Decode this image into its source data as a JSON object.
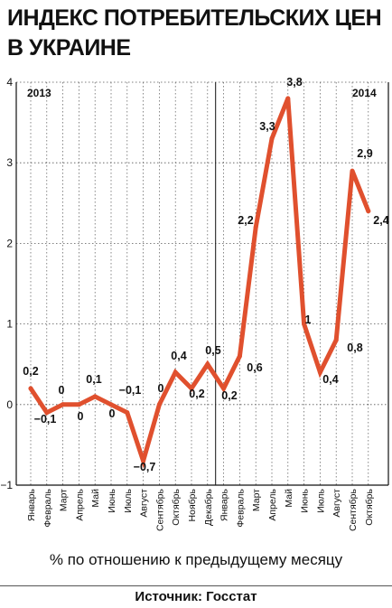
{
  "title_line1": "ИНДЕКС ПОТРЕБИТЕЛЬСКИХ ЦЕН",
  "title_line2": "В УКРАИНЕ",
  "caption": "% по отношению к предыдущему месяцу",
  "source": "Источник: Госстат",
  "chart_data": {
    "type": "line",
    "year_labels": [
      "2013",
      "2014"
    ],
    "categories": [
      "Январь",
      "Февраль",
      "Март",
      "Апрель",
      "Май",
      "Июнь",
      "Июль",
      "Август",
      "Сентябрь",
      "Октябрь",
      "Ноябрь",
      "Декабрь",
      "Январь",
      "Февраль",
      "Март",
      "Апрель",
      "Май",
      "Июнь",
      "Июль",
      "Август",
      "Сентябрь",
      "Октябрь"
    ],
    "values": [
      0.2,
      -0.1,
      0,
      0,
      0.1,
      0,
      -0.1,
      -0.7,
      0,
      0.4,
      0.2,
      0.5,
      0.2,
      0.6,
      2.2,
      3.3,
      3.8,
      1,
      0.4,
      0.8,
      2.9,
      2.4
    ],
    "value_labels": [
      "0,2",
      "−0,1",
      "0",
      "0",
      "0,1",
      "0",
      "−0,1",
      "−0,7",
      "0",
      "0,4",
      "0,2",
      "0,5",
      "0,2",
      "0,6",
      "2,2",
      "3,3",
      "3,8",
      "1",
      "0,4",
      "0,8",
      "2,9",
      "2,4"
    ],
    "y_ticks": [
      "4",
      "3",
      "2",
      "1",
      "0",
      "−1"
    ],
    "y_tick_values": [
      4,
      3,
      2,
      1,
      0,
      -1
    ],
    "ylim": [
      -1,
      4
    ],
    "line_color": "#e0502e",
    "grid": "dotted"
  }
}
